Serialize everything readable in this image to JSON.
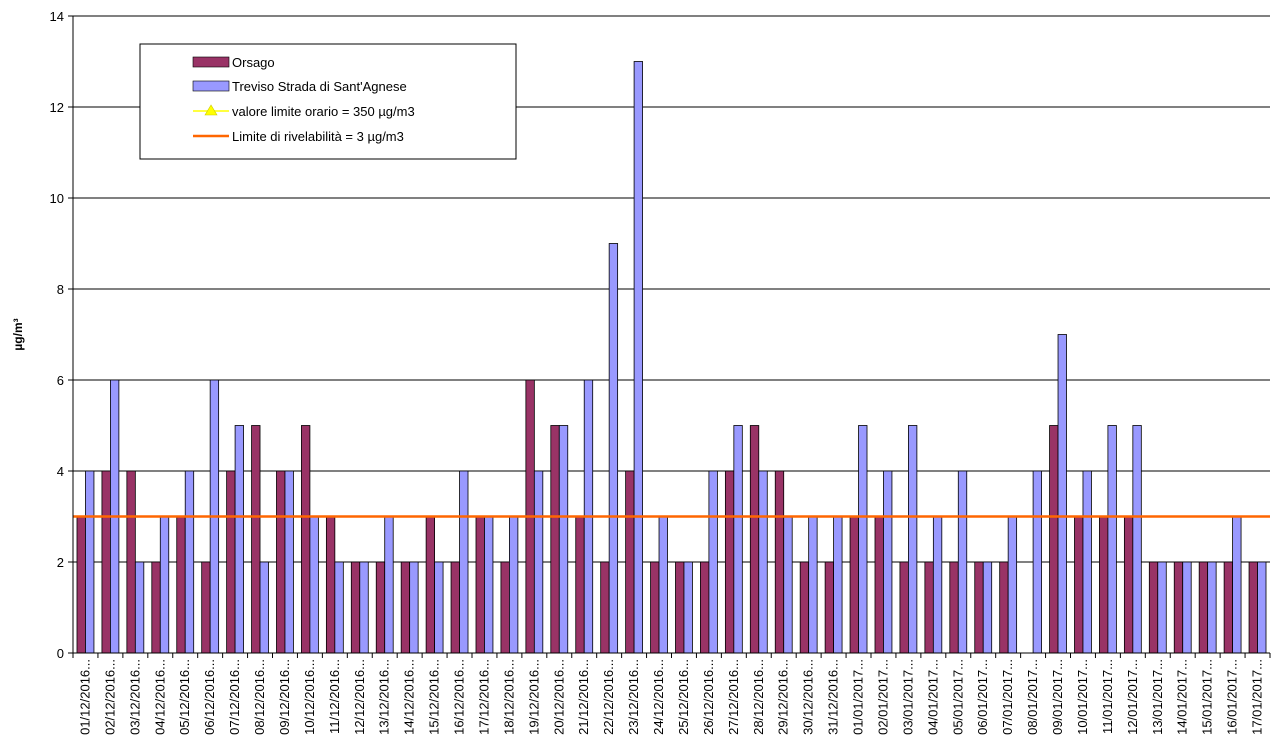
{
  "chart_data": {
    "type": "bar",
    "ylabel": "µg/m³",
    "ylim": [
      0,
      14
    ],
    "y_ticks": [
      0,
      2,
      4,
      6,
      8,
      10,
      12,
      14
    ],
    "grid": true,
    "legend_position": "top-left",
    "categories": [
      "01/12/2016...",
      "02/12/2016...",
      "03/12/2016...",
      "04/12/2016...",
      "05/12/2016...",
      "06/12/2016...",
      "07/12/2016...",
      "08/12/2016...",
      "09/12/2016...",
      "10/12/2016...",
      "11/12/2016...",
      "12/12/2016...",
      "13/12/2016...",
      "14/12/2016...",
      "15/12/2016...",
      "16/12/2016...",
      "17/12/2016...",
      "18/12/2016...",
      "19/12/2016...",
      "20/12/2016...",
      "21/12/2016...",
      "22/12/2016...",
      "23/12/2016...",
      "24/12/2016...",
      "25/12/2016...",
      "26/12/2016...",
      "27/12/2016...",
      "28/12/2016...",
      "29/12/2016...",
      "30/12/2016...",
      "31/12/2016...",
      "01/01/2017...",
      "02/01/2017...",
      "03/01/2017...",
      "04/01/2017...",
      "05/01/2017...",
      "06/01/2017...",
      "07/01/2017...",
      "08/01/2017...",
      "09/01/2017...",
      "10/01/2017...",
      "11/01/2017...",
      "12/01/2017...",
      "13/01/2017...",
      "14/01/2017...",
      "15/01/2017...",
      "16/01/2017...",
      "17/01/2017..."
    ],
    "series": [
      {
        "name": "Orsago",
        "color": "#993366",
        "values": [
          3,
          4,
          4,
          2,
          3,
          2,
          4,
          5,
          4,
          5,
          3,
          2,
          2,
          2,
          3,
          2,
          3,
          2,
          6,
          5,
          3,
          2,
          4,
          2,
          2,
          2,
          4,
          5,
          4,
          2,
          2,
          3,
          3,
          2,
          2,
          2,
          2,
          2,
          null,
          5,
          3,
          3,
          3,
          2,
          2,
          2,
          2,
          2
        ]
      },
      {
        "name": "Treviso Strada di Sant'Agnese",
        "color": "#9999ff",
        "values": [
          4,
          6,
          2,
          3,
          4,
          6,
          5,
          2,
          4,
          3,
          2,
          2,
          3,
          2,
          2,
          4,
          3,
          3,
          4,
          5,
          6,
          9,
          13,
          3,
          2,
          4,
          5,
          4,
          3,
          3,
          3,
          5,
          4,
          5,
          3,
          4,
          2,
          3,
          4,
          7,
          4,
          5,
          5,
          2,
          2,
          2,
          3,
          2
        ]
      }
    ],
    "reference_lines": [
      {
        "name": "valore limite orario = 350 µg/m3",
        "color": "#ffff00",
        "marker": "triangle"
      },
      {
        "name": "Limite di rivelabilità = 3 µg/m3",
        "color": "#ff6600",
        "value": 3
      }
    ]
  }
}
